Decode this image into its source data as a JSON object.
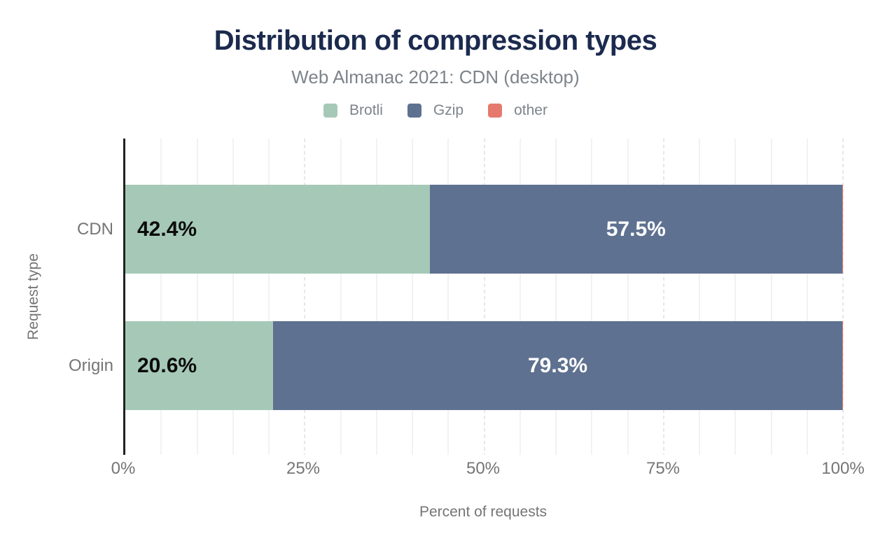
{
  "colors": {
    "background": "#ffffff",
    "title_text": "#1b2a4e",
    "muted_text": "#7d848a",
    "axis_text": "#757575",
    "axis_line": "#212121",
    "grid_minor": "#f2f2f4",
    "grid_major": "#e7e7eb"
  },
  "chart_data": {
    "type": "bar",
    "orientation": "horizontal",
    "stacked": true,
    "title": "Distribution of compression types",
    "subtitle": "Web Almanac 2021: CDN (desktop)",
    "xlabel": "Percent of requests",
    "ylabel": "Request type",
    "xlim": [
      0,
      100
    ],
    "grid": {
      "minor_step": 5,
      "major_step": 25,
      "grid_on": true
    },
    "legend_position": "top",
    "categories": [
      "CDN",
      "Origin"
    ],
    "series": [
      {
        "name": "Brotli",
        "color": "#a6c9b7",
        "values": [
          42.4,
          20.6
        ],
        "labels": [
          "42.4%",
          "20.6%"
        ],
        "label_color": "#0b0b0b",
        "label_align": "start"
      },
      {
        "name": "Gzip",
        "color": "#5e7190",
        "values": [
          57.5,
          79.3
        ],
        "labels": [
          "57.5%",
          "79.3%"
        ],
        "label_color": "#ffffff",
        "label_align": "center"
      },
      {
        "name": "other",
        "color": "#e5796e",
        "values": [
          0.1,
          0.1
        ],
        "labels": [
          "",
          ""
        ],
        "label_color": "#ffffff",
        "label_align": "center"
      }
    ],
    "x_ticks": [
      {
        "value": 0,
        "label": "0%"
      },
      {
        "value": 25,
        "label": "25%"
      },
      {
        "value": 50,
        "label": "50%"
      },
      {
        "value": 75,
        "label": "75%"
      },
      {
        "value": 100,
        "label": "100%"
      }
    ]
  }
}
